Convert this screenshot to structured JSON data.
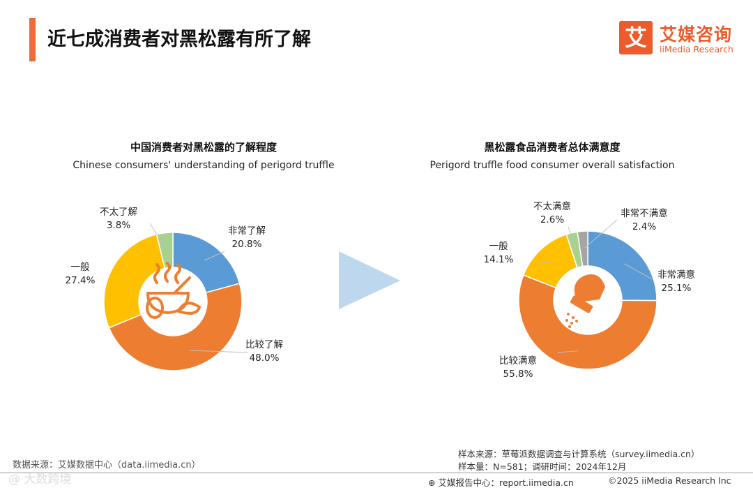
{
  "page": {
    "title": "近七成消费者对黑松露有所了解"
  },
  "logo": {
    "mark": "艾",
    "name_cn": "艾媒咨询",
    "name_en": "iiMedia Research"
  },
  "colors": {
    "accent": "#ee6a36",
    "blue": "#5b9bd5",
    "orange": "#ed7d31",
    "yellow": "#ffc000",
    "green": "#a9d18e",
    "gray": "#a5a5a5",
    "arrow": "#bdd7ee"
  },
  "chart_data": [
    {
      "type": "pie",
      "title": "中国消费者对黑松露的了解程度",
      "subtitle": "Chinese consumers' understanding of perigord truffle",
      "categories": [
        "非常了解",
        "比较了解",
        "一般",
        "不太了解"
      ],
      "values": [
        20.8,
        48.0,
        27.4,
        3.8
      ],
      "labels": [
        "20.8%",
        "48.0%",
        "27.4%",
        "3.8%"
      ],
      "colors": [
        "#5b9bd5",
        "#ed7d31",
        "#ffc000",
        "#a9d18e"
      ],
      "center_icon": "food-bowl-icon"
    },
    {
      "type": "pie",
      "title": "黑松露食品消费者总体满意度",
      "subtitle": "Perigord truffle food consumer overall satisfaction",
      "categories": [
        "非常满意",
        "比较满意",
        "一般",
        "不太满意",
        "非常不满意"
      ],
      "values": [
        25.1,
        55.8,
        14.1,
        2.6,
        2.4
      ],
      "labels": [
        "25.1%",
        "55.8%",
        "14.1%",
        "2.6%",
        "2.4%"
      ],
      "colors": [
        "#5b9bd5",
        "#ed7d31",
        "#ffc000",
        "#a9d18e",
        "#a5a5a5"
      ],
      "center_icon": "salt-shaker-icon"
    }
  ],
  "footer": {
    "data_source": "数据来源：艾媒数据中心（data.iimedia.cn）",
    "sample_source": "样本来源：草莓派数据调查与计算系统（survey.iimedia.cn）",
    "sample_info": "样本量：N=581；调研时间：2024年12月",
    "report_center": "艾媒报告中心：report.iimedia.cn",
    "copyright": "©2025  iiMedia Research  Inc",
    "watermark": "@ 大数跨境"
  }
}
